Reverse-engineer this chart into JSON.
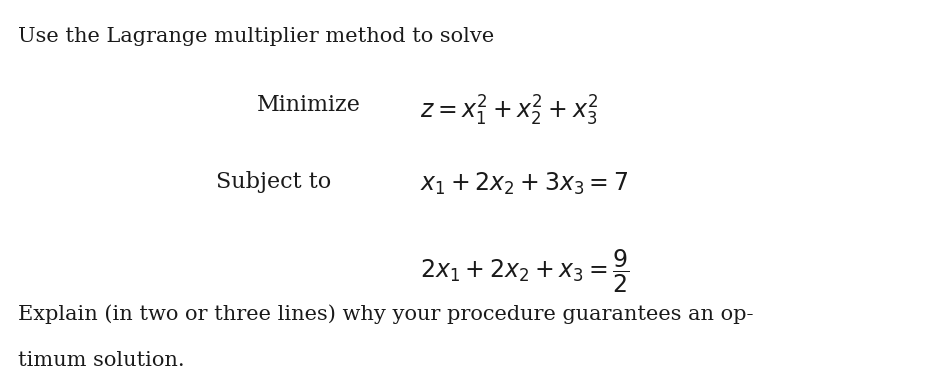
{
  "background_color": "#ffffff",
  "text_color": "#1a1a1a",
  "intro_text": "Use the Lagrange multiplier method to solve",
  "minimize_label": "Minimize",
  "minimize_eq": "$z = x_1^2 + x_2^2 + x_3^2$",
  "subject_label": "Subject to",
  "constraint1": "$x_1 + 2x_2 + 3x_3 = 7$",
  "constraint2": "$2x_1 + 2x_2 + x_3 = \\dfrac{9}{2}$",
  "footer_line1": "Explain (in two or three lines) why your procedure guarantees an op-",
  "footer_line2": "timum solution.",
  "font_size_intro": 15,
  "font_size_body": 16,
  "font_size_math": 17,
  "font_size_footer": 15
}
